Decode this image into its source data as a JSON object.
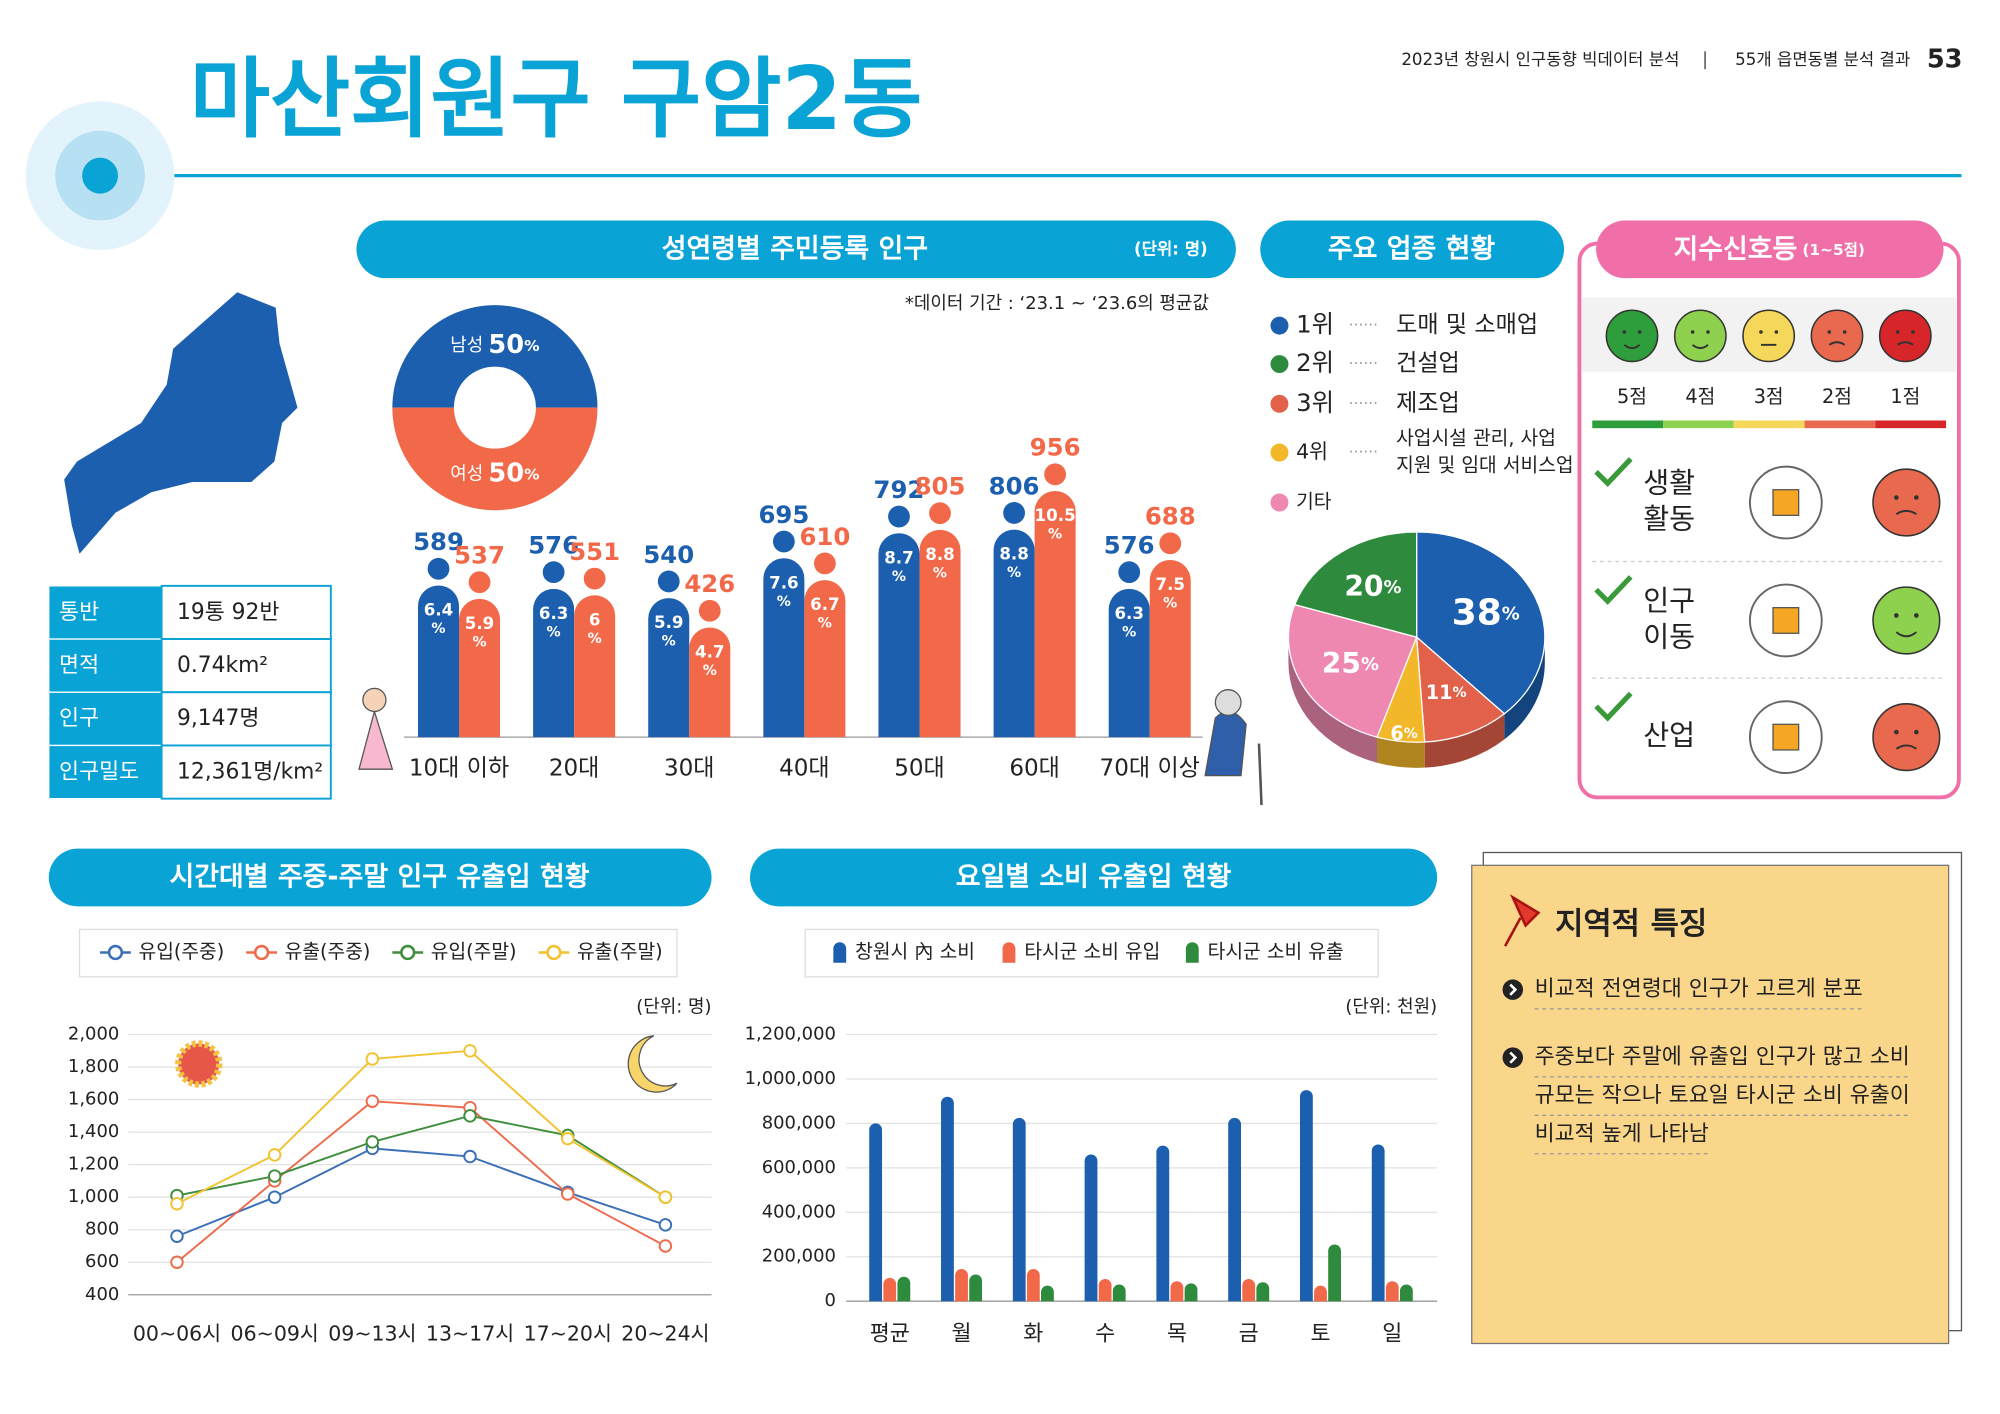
{
  "header": {
    "report": "2023년 창원시 인구동향 빅데이터 분석",
    "section": "55개 읍면동별 분석 결과",
    "page": "53",
    "title": "마산회원구 구암2동"
  },
  "info_table": {
    "rows": [
      [
        "통반",
        "19통 92반"
      ],
      [
        "면적",
        "0.74km²"
      ],
      [
        "인구",
        "9,147명"
      ],
      [
        "인구밀도",
        "12,361명/km²"
      ]
    ]
  },
  "chart_data": [
    {
      "type": "population_bar",
      "title": "성연령별 주민등록 인구",
      "unit_note": "(단위: 명)",
      "note": "*데이터 기간 : ‘23.1 ~ ‘23.6의 평균값",
      "unit": "%",
      "categories": [
        "10대 이하",
        "20대",
        "30대",
        "40대",
        "50대",
        "60대",
        "70대 이상"
      ],
      "series": [
        {
          "name": "남성",
          "color": "#1b5fae",
          "share": 50,
          "values": [
            589,
            576,
            540,
            695,
            792,
            806,
            576
          ],
          "percents": [
            6.4,
            6.3,
            5.9,
            7.6,
            8.7,
            8.8,
            6.3
          ]
        },
        {
          "name": "여성",
          "color": "#f2694a",
          "share": 50,
          "values": [
            537,
            551,
            426,
            610,
            805,
            956,
            688
          ],
          "percents": [
            5.9,
            6,
            4.7,
            6.7,
            8.8,
            10.5,
            7.5
          ]
        }
      ]
    },
    {
      "type": "pie",
      "title": "주요 업종 현황",
      "unit": "%",
      "ranks": [
        "1위",
        "2위",
        "3위",
        "4위",
        "기타"
      ],
      "names": [
        [
          "도매 및 소매업"
        ],
        [
          "건설업"
        ],
        [
          "제조업"
        ],
        [
          "사업시설 관리, 사업",
          "지원 및 임대 서비스업"
        ],
        null
      ],
      "values": [
        38,
        20,
        11,
        6,
        25
      ],
      "colors": [
        "#1b5fae",
        "#2e8b3e",
        "#e2614a",
        "#f3b72a",
        "#ee88b0"
      ]
    },
    {
      "type": "line",
      "title": "시간대별 주중-주말 인구 유출입 현황",
      "unit_note": "(단위: 명)",
      "categories": [
        "00~06시",
        "06~09시",
        "09~13시",
        "13~17시",
        "17~20시",
        "20~24시"
      ],
      "ylim": [
        400,
        2000
      ],
      "yticks": [
        400,
        600,
        800,
        {
          "value": 1000,
          "label": "1,000"
        },
        {
          "value": 1200,
          "label": "1,200"
        },
        {
          "value": 1400,
          "label": "1,400"
        },
        {
          "value": 1600,
          "label": "1,600"
        },
        {
          "value": 1800,
          "label": "1,800"
        },
        {
          "value": 2000,
          "label": "2,000"
        }
      ],
      "grid": true,
      "series": [
        {
          "name": "유입(주중)",
          "color": "#3b6fb6",
          "values": [
            760,
            1000,
            1300,
            1250,
            1030,
            830
          ]
        },
        {
          "name": "유출(주중)",
          "color": "#ef6b4d",
          "values": [
            600,
            1100,
            1590,
            1550,
            1020,
            700
          ]
        },
        {
          "name": "유입(주말)",
          "color": "#3e8e3c",
          "values": [
            1010,
            1130,
            1340,
            1500,
            1380,
            1000
          ]
        },
        {
          "name": "유출(주말)",
          "color": "#f2c230",
          "values": [
            960,
            1260,
            1850,
            1900,
            1360,
            1000
          ]
        }
      ]
    },
    {
      "type": "bar",
      "title": "요일별 소비 유출입 현황",
      "unit_note": "(단위: 천원)",
      "categories": [
        "평균",
        "월",
        "화",
        "수",
        "목",
        "금",
        "토",
        "일"
      ],
      "ylim": [
        0,
        1200000
      ],
      "yticks": [
        0,
        {
          "value": 200000,
          "label": "200,000"
        },
        {
          "value": 400000,
          "label": "400,000"
        },
        {
          "value": 600000,
          "label": "600,000"
        },
        {
          "value": 800000,
          "label": "800,000"
        },
        {
          "value": 1000000,
          "label": "1,000,000"
        },
        {
          "value": 1200000,
          "label": "1,200,000"
        }
      ],
      "grid": true,
      "series": [
        {
          "name": "창원시 內 소비",
          "color": "#1b5fae",
          "values": [
            800000,
            920000,
            825000,
            660000,
            700000,
            825000,
            950000,
            705000
          ]
        },
        {
          "name": "타시군 소비 유입",
          "color": "#f2694a",
          "values": [
            105000,
            145000,
            145000,
            100000,
            90000,
            100000,
            70000,
            90000
          ]
        },
        {
          "name": "타시군 소비 유출",
          "color": "#2e8b3e",
          "values": [
            110000,
            120000,
            70000,
            75000,
            80000,
            85000,
            255000,
            75000
          ]
        }
      ]
    }
  ],
  "signal": {
    "title": "지수신호등",
    "range": "(1~5점)",
    "levels": [
      "5점",
      "4점",
      "3점",
      "2점",
      "1점"
    ],
    "colors": [
      "#2e9e3c",
      "#8dd14f",
      "#f5d75a",
      "#e8694e",
      "#d7262a"
    ],
    "rows": [
      {
        "label": [
          "생활",
          "활동"
        ],
        "score": 2
      },
      {
        "label": [
          "인구",
          "이동"
        ],
        "score": 4
      },
      {
        "label": [
          "산업"
        ],
        "score": 2
      }
    ]
  },
  "features": {
    "title": "지역적 특징",
    "items": [
      [
        "비교적 전연령대 인구가 고르게 분포"
      ],
      [
        "주중보다 주말에 유출입 인구가 많고 소비",
        "규모는 작으나 토요일 타시군 소비 유출이",
        "비교적 높게 나타남"
      ]
    ]
  }
}
